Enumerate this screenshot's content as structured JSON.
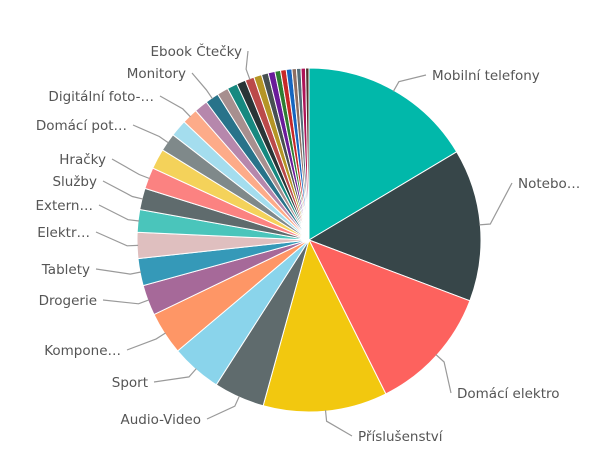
{
  "chart_data": {
    "type": "pie",
    "title": "",
    "legend": "none",
    "slices": [
      {
        "label": "Mobilní telefony",
        "value": 15.5,
        "color": "#01B8AA"
      },
      {
        "label": "Notebo…",
        "value": 13.5,
        "color": "#374649"
      },
      {
        "label": "Domácí elektro",
        "value": 11.2,
        "color": "#FD625E"
      },
      {
        "label": "Příslušenství",
        "value": 11.0,
        "color": "#F2C80F"
      },
      {
        "label": "Audio-Video",
        "value": 4.5,
        "color": "#5F6B6D"
      },
      {
        "label": "Sport",
        "value": 4.5,
        "color": "#8AD4EB"
      },
      {
        "label": "Kompone…",
        "value": 3.8,
        "color": "#FE9666"
      },
      {
        "label": "Drogerie",
        "value": 2.7,
        "color": "#A66999"
      },
      {
        "label": "Tablety",
        "value": 2.4,
        "color": "#3599B8"
      },
      {
        "label": "Elektr…",
        "value": 2.3,
        "color": "#DFBFBF"
      },
      {
        "label": "Extern…",
        "value": 2.0,
        "color": "#4AC5BB"
      },
      {
        "label": "Služby",
        "value": 1.9,
        "color": "#5F6B6D"
      },
      {
        "label": "Hračky",
        "value": 1.9,
        "color": "#FB8281"
      },
      {
        "label": "",
        "value": 1.8,
        "color": "#F4D25A"
      },
      {
        "label": "Domácí pot…",
        "value": 1.6,
        "color": "#7F898A"
      },
      {
        "label": "",
        "value": 1.5,
        "color": "#A4DDEE"
      },
      {
        "label": "Digitální foto-…",
        "value": 1.4,
        "color": "#FDAB89"
      },
      {
        "label": "",
        "value": 1.2,
        "color": "#B687AC"
      },
      {
        "label": "Monitory",
        "value": 1.2,
        "color": "#28738A"
      },
      {
        "label": "",
        "value": 1.0,
        "color": "#A78F8F"
      },
      {
        "label": "",
        "value": 0.9,
        "color": "#168980"
      },
      {
        "label": "",
        "value": 0.8,
        "color": "#293537"
      },
      {
        "label": "Ebook Čtečky",
        "value": 0.8,
        "color": "#BB4A4A"
      },
      {
        "label": "",
        "value": 0.7,
        "color": "#B59525"
      },
      {
        "label": "",
        "value": 0.6,
        "color": "#475052"
      },
      {
        "label": "",
        "value": 0.6,
        "color": "#6A1B9A"
      },
      {
        "label": "",
        "value": 0.5,
        "color": "#2E7D32"
      },
      {
        "label": "",
        "value": 0.5,
        "color": "#C62828"
      },
      {
        "label": "",
        "value": 0.5,
        "color": "#1565C0"
      },
      {
        "label": "",
        "value": 0.4,
        "color": "#8D6E63"
      },
      {
        "label": "",
        "value": 0.4,
        "color": "#546E7A"
      },
      {
        "label": "",
        "value": 0.4,
        "color": "#AD1457"
      },
      {
        "label": "",
        "value": 0.3,
        "color": "#4E342E"
      }
    ]
  }
}
